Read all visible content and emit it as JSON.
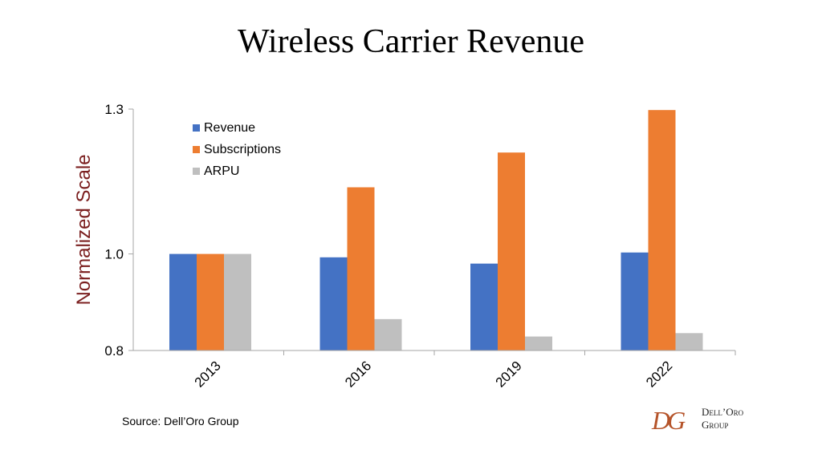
{
  "chart_data": {
    "type": "bar",
    "title": "Wireless Carrier Revenue",
    "ylabel": "Normalized Scale",
    "xlabel": "",
    "categories": [
      "2013",
      "2016",
      "2019",
      "2022"
    ],
    "series": [
      {
        "name": "Revenue",
        "color": "#4472c4",
        "values": [
          1.0,
          0.993,
          0.98,
          1.003
        ]
      },
      {
        "name": "Subscriptions",
        "color": "#ed7d31",
        "values": [
          1.0,
          1.138,
          1.21,
          1.298
        ]
      },
      {
        "name": "ARPU",
        "color": "#bfbfbf",
        "values": [
          1.0,
          0.865,
          0.829,
          0.836
        ]
      }
    ],
    "ylim": [
      0.8,
      1.3
    ],
    "yticks": [
      "0.8",
      "1.0",
      "1.3"
    ],
    "ytick_values": [
      0.8,
      1.0,
      1.3
    ],
    "legend_position": "top-left",
    "grid": false
  },
  "footer": {
    "source": "Source: Dell’Oro Group",
    "logo_mark": "DG",
    "logo_line1": "Dell’Oro",
    "logo_line2": "Group"
  },
  "colors": {
    "ylabel": "#7b1f1f",
    "axis": "#a6a6a6",
    "logo": "#b5542a"
  }
}
